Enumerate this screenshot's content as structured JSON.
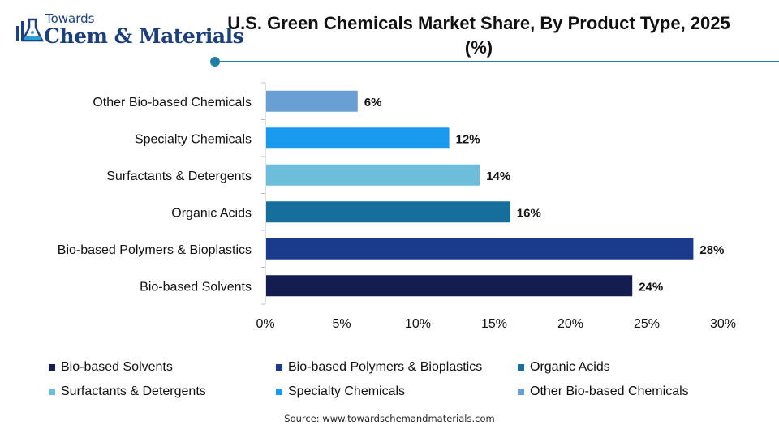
{
  "logo": {
    "top_text": "Towards",
    "main_text": "Chem & Materials"
  },
  "title": "U.S. Green Chemicals Market Share, By Product Type, 2025 (%)",
  "source": "Source: www.towardschemandmaterials.com",
  "chart_data": {
    "type": "bar",
    "orientation": "horizontal",
    "title": "U.S. Green Chemicals Market Share, By Product Type, 2025 (%)",
    "categories": [
      "Bio-based Solvents",
      "Bio-based Polymers & Bioplastics",
      "Organic Acids",
      "Surfactants & Detergents",
      "Specialty Chemicals",
      "Other Bio-based Chemicals"
    ],
    "values": [
      24,
      28,
      16,
      14,
      12,
      6
    ],
    "data_labels": [
      "24%",
      "28%",
      "16%",
      "14%",
      "12%",
      "6%"
    ],
    "colors": [
      "#141d4f",
      "#1a3a8c",
      "#156e9b",
      "#6cbedb",
      "#1a9aef",
      "#6a9fd4"
    ],
    "xlim": [
      0,
      30
    ],
    "xticks": [
      "0%",
      "5%",
      "10%",
      "15%",
      "20%",
      "25%",
      "30%"
    ],
    "grid": false,
    "legend_position": "bottom"
  }
}
